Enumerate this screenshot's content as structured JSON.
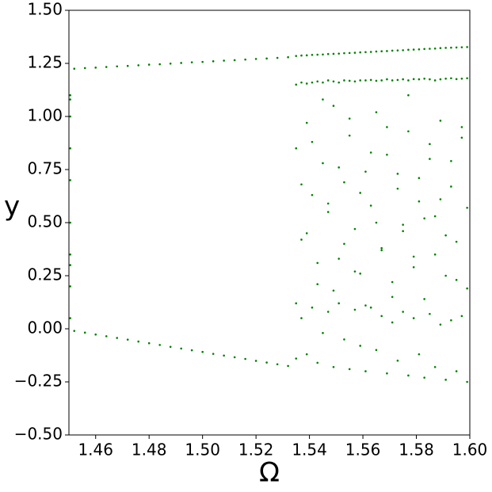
{
  "chart_data": {
    "type": "scatter",
    "xlabel": "Ω",
    "ylabel": "y",
    "color": "#008000",
    "xlim": [
      1.45,
      1.6
    ],
    "ylim": [
      -0.5,
      1.5
    ],
    "xticks": [
      1.46,
      1.48,
      {
        "value": 1.5,
        "label": "1.50"
      },
      1.52,
      1.54,
      1.56,
      1.58,
      {
        "value": 1.6,
        "label": "1.60"
      }
    ],
    "yticks": [
      {
        "value": -0.5,
        "label": "−0.50"
      },
      {
        "value": -0.25,
        "label": "−0.25"
      },
      {
        "value": 0,
        "label": "0.00"
      },
      {
        "value": 0.25,
        "label": "0.25"
      },
      {
        "value": 0.5,
        "label": "0.50"
      },
      {
        "value": 0.75,
        "label": "0.75"
      },
      {
        "value": 1,
        "label": "1.00"
      },
      {
        "value": 1.25,
        "label": "1.25"
      },
      {
        "value": 1.5,
        "label": "1.50"
      }
    ],
    "x": [
      1.452,
      1.456,
      1.46,
      1.464,
      1.468,
      1.472,
      1.476,
      1.48,
      1.484,
      1.488,
      1.492,
      1.496,
      1.5,
      1.504,
      1.508,
      1.512,
      1.516,
      1.52,
      1.524,
      1.528,
      1.532,
      1.452,
      1.456,
      1.46,
      1.464,
      1.468,
      1.472,
      1.476,
      1.48,
      1.484,
      1.488,
      1.492,
      1.496,
      1.5,
      1.504,
      1.508,
      1.512,
      1.516,
      1.52,
      1.524,
      1.528,
      1.532,
      1.4505,
      1.4505,
      1.4505,
      1.4505,
      1.4505,
      1.4505,
      1.4505,
      1.4505,
      1.4505,
      1.4505,
      1.535,
      1.537,
      1.539,
      1.541,
      1.543,
      1.545,
      1.547,
      1.549,
      1.551,
      1.553,
      1.555,
      1.557,
      1.559,
      1.561,
      1.563,
      1.565,
      1.567,
      1.569,
      1.571,
      1.573,
      1.575,
      1.577,
      1.579,
      1.581,
      1.583,
      1.585,
      1.587,
      1.589,
      1.591,
      1.593,
      1.595,
      1.597,
      1.599,
      1.535,
      1.537,
      1.539,
      1.541,
      1.543,
      1.545,
      1.547,
      1.549,
      1.551,
      1.553,
      1.555,
      1.557,
      1.559,
      1.561,
      1.563,
      1.565,
      1.567,
      1.569,
      1.571,
      1.573,
      1.575,
      1.577,
      1.579,
      1.581,
      1.583,
      1.585,
      1.587,
      1.589,
      1.591,
      1.593,
      1.595,
      1.597,
      1.599,
      1.535,
      1.537,
      1.539,
      1.541,
      1.543,
      1.545,
      1.547,
      1.549,
      1.551,
      1.553,
      1.555,
      1.557,
      1.559,
      1.561,
      1.563,
      1.565,
      1.567,
      1.569,
      1.571,
      1.573,
      1.575,
      1.577,
      1.579,
      1.581,
      1.583,
      1.585,
      1.587,
      1.589,
      1.591,
      1.593,
      1.595,
      1.597,
      1.599,
      1.535,
      1.537,
      1.539,
      1.541,
      1.543,
      1.545,
      1.547,
      1.549,
      1.551,
      1.553,
      1.555,
      1.557,
      1.559,
      1.561,
      1.563,
      1.565,
      1.567,
      1.569,
      1.571,
      1.573,
      1.575,
      1.577,
      1.579,
      1.581,
      1.583,
      1.585,
      1.587,
      1.589,
      1.591,
      1.593,
      1.595,
      1.597,
      1.599,
      1.535,
      1.537,
      1.539,
      1.541,
      1.543,
      1.545,
      1.547,
      1.549,
      1.551,
      1.553,
      1.555,
      1.557,
      1.559,
      1.561,
      1.563,
      1.565,
      1.567,
      1.569,
      1.571,
      1.573,
      1.575,
      1.577,
      1.579,
      1.581,
      1.583,
      1.585,
      1.587,
      1.589,
      1.591,
      1.593,
      1.595,
      1.597,
      1.599
    ],
    "values": [
      1.225,
      1.228,
      1.23,
      1.233,
      1.236,
      1.238,
      1.241,
      1.244,
      1.246,
      1.249,
      1.252,
      1.255,
      1.257,
      1.26,
      1.263,
      1.265,
      1.268,
      1.271,
      1.273,
      1.276,
      1.279,
      -0.01,
      -0.018,
      -0.027,
      -0.035,
      -0.043,
      -0.051,
      -0.06,
      -0.068,
      -0.076,
      -0.085,
      -0.093,
      -0.101,
      -0.109,
      -0.118,
      -0.126,
      -0.134,
      -0.142,
      -0.151,
      -0.159,
      -0.167,
      -0.175,
      0.05,
      0.2,
      0.35,
      0.5,
      0.7,
      0.85,
      1.0,
      1.1,
      1.08,
      0.3,
      1.285,
      1.287,
      1.288,
      1.29,
      1.291,
      1.292,
      1.294,
      1.295,
      1.296,
      1.298,
      1.299,
      1.3,
      1.302,
      1.303,
      1.304,
      1.306,
      1.307,
      1.308,
      1.31,
      1.311,
      1.312,
      1.314,
      1.315,
      1.316,
      1.318,
      1.319,
      1.32,
      1.322,
      1.323,
      1.324,
      1.325,
      1.326,
      1.327,
      1.15,
      1.16,
      1.155,
      1.16,
      1.165,
      1.16,
      1.17,
      1.165,
      1.16,
      1.17,
      1.168,
      1.165,
      1.17,
      1.17,
      1.172,
      1.168,
      1.17,
      1.175,
      1.17,
      1.172,
      1.175,
      1.17,
      1.176,
      1.175,
      1.178,
      1.175,
      1.17,
      1.175,
      1.178,
      1.18,
      1.176,
      1.178,
      1.18,
      0.85,
      0.42,
      0.97,
      0.63,
      0.21,
      0.78,
      0.55,
      1.05,
      0.33,
      0.69,
      0.91,
      0.47,
      0.26,
      0.74,
      0.58,
      1.02,
      0.38,
      0.82,
      0.15,
      0.66,
      0.49,
      0.93,
      0.29,
      0.71,
      0.52,
      0.87,
      0.35,
      0.61,
      0.44,
      0.79,
      0.23,
      0.95,
      0.57,
      -0.14,
      0.05,
      -0.12,
      0.1,
      -0.16,
      -0.02,
      0.08,
      -0.18,
      0.12,
      -0.05,
      -0.19,
      0.09,
      -0.08,
      -0.2,
      0.1,
      -0.1,
      0.06,
      -0.21,
      0.03,
      -0.15,
      0.08,
      -0.22,
      0.05,
      -0.12,
      -0.23,
      0.07,
      -0.18,
      0.02,
      -0.24,
      0.04,
      -0.2,
      0.06,
      -0.25,
      0.12,
      0.68,
      0.45,
      0.88,
      0.31,
      1.08,
      0.59,
      0.18,
      0.76,
      0.4,
      0.99,
      0.27,
      0.64,
      0.11,
      0.83,
      0.5,
      0.37,
      0.95,
      0.22,
      0.73,
      0.46,
      1.1,
      0.34,
      0.6,
      0.14,
      0.8,
      0.53,
      0.98,
      0.25,
      0.67,
      0.41,
      0.9,
      0.19
    ]
  }
}
